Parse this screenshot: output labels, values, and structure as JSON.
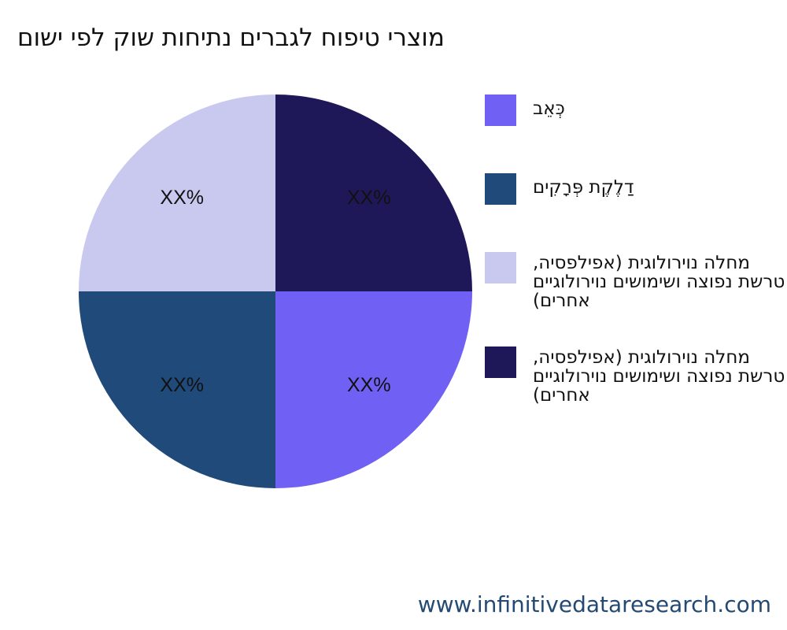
{
  "chart_data": {
    "type": "pie",
    "title": "מוצרי טיפוח לגברים נתיחות שוק לפי ישום",
    "categories": [
      "כְּאֵב",
      "דַלֶקֶת פְּרָקִים",
      "מחלה נוירולוגית (אפילפסיה, טרשת נפוצה ושימושים נוירולוגיים אחרים)",
      "מחלה נוירולוגית (אפילפסיה, טרשת נפוצה ושימושים נוירולוגיים אחרים)"
    ],
    "values": [
      25,
      25,
      25,
      25
    ],
    "value_labels": [
      "XX%",
      "XX%",
      "XX%",
      "XX%"
    ],
    "colors": [
      "#7060f3",
      "#1f4a7a",
      "#c9c9f0",
      "#1e1858"
    ],
    "start_angle_deg": 90,
    "direction": "clockwise",
    "legend_position": "right"
  },
  "watermark": "www.infinitivedataresearch.com"
}
